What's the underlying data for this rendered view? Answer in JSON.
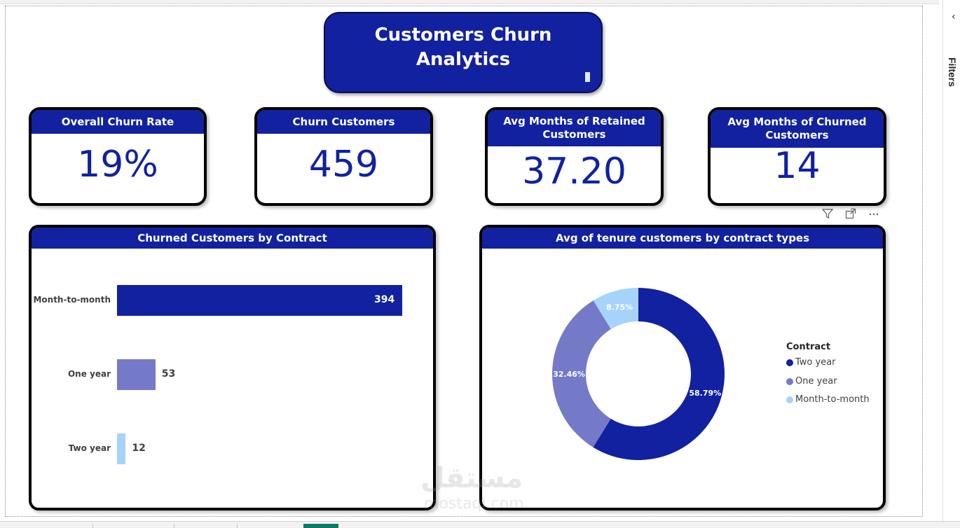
{
  "title": {
    "line1": "Customers Churn",
    "line2": "Analytics"
  },
  "kpis": [
    {
      "label": "Overall Churn Rate",
      "value": "19%"
    },
    {
      "label": "Churn Customers",
      "value": "459"
    },
    {
      "label": "Avg Months of Retained Customers",
      "value": "37.20"
    },
    {
      "label": "Avg Months of Churned Customers",
      "value": "14"
    }
  ],
  "filters_pane": {
    "label": "Filters"
  },
  "toolbar": {
    "filter_icon": "filter-icon",
    "focus_icon": "focus-mode-icon",
    "more_icon": "more-options-icon"
  },
  "watermark": {
    "text": "مستقل",
    "sub": "mostaql.com"
  },
  "colors": {
    "dark_blue": "#1121a0",
    "mid_blue": "#747ac8",
    "light_blue": "#a6d3fb"
  },
  "chart_data": [
    {
      "type": "bar",
      "title": "Churned Customers by Contract",
      "categories": [
        "Month-to-month",
        "One year",
        "Two year"
      ],
      "values": [
        394,
        53,
        12
      ],
      "colors": [
        "#1121a0",
        "#747ac8",
        "#a6d3fb"
      ],
      "xlim": [
        0,
        394
      ]
    },
    {
      "type": "pie",
      "title": "Avg of tenure customers by contract types",
      "legend_title": "Contract",
      "legend_position": "right",
      "slices": [
        {
          "name": "Two year",
          "value": 58.79,
          "label": "58.79%",
          "color": "#1121a0"
        },
        {
          "name": "One year",
          "value": 32.46,
          "label": "32.46%",
          "color": "#747ac8"
        },
        {
          "name": "Month-to-month",
          "value": 8.75,
          "label": "8.75%",
          "color": "#a6d3fb"
        }
      ]
    }
  ]
}
